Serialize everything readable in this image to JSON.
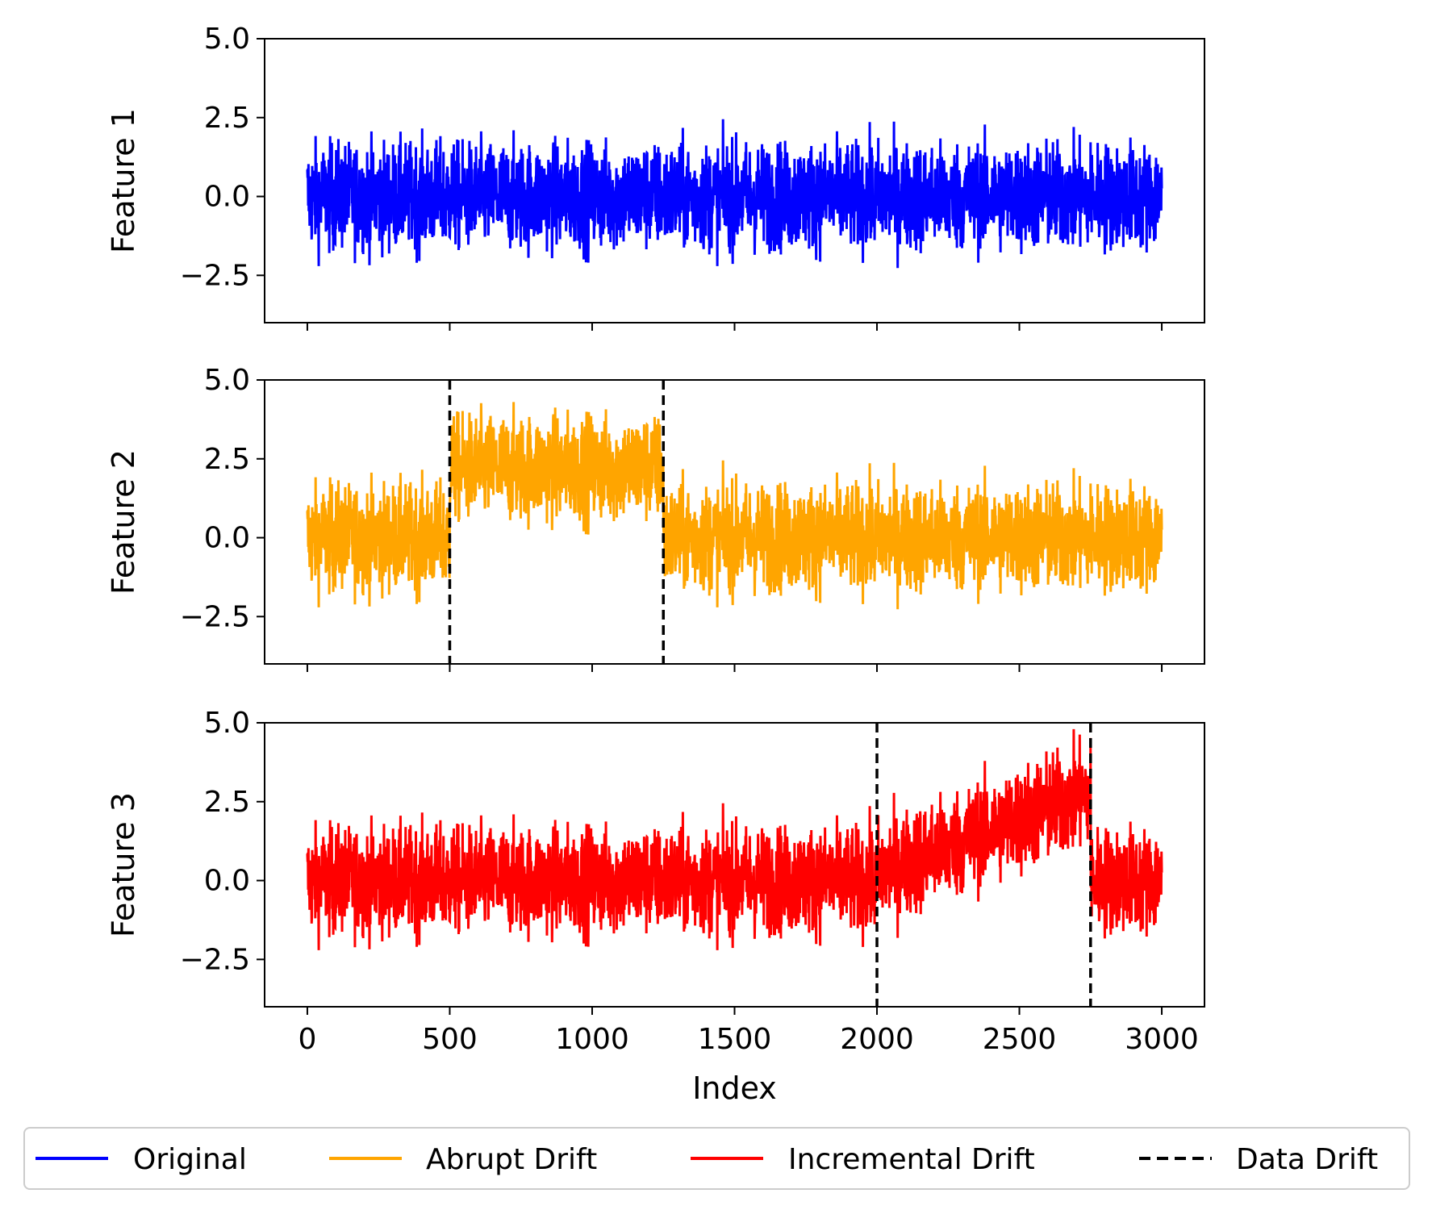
{
  "chart_data": {
    "type": "line",
    "x": {
      "min": 0,
      "max": 3000,
      "num_points": 3000
    },
    "xlabel": "Index",
    "xlim": [
      -150,
      3150
    ],
    "xticks": [
      0,
      500,
      1000,
      1500,
      2000,
      2500,
      3000
    ],
    "ylim": [
      -4.0,
      5.0
    ],
    "yticks": [
      -2.5,
      0.0,
      2.5,
      5.0
    ],
    "ytick_labels": [
      "−2.5",
      "0.0",
      "2.5",
      "5.0"
    ],
    "grid": false,
    "legend_position": "bottom",
    "panels": [
      {
        "ylabel": "Feature 1",
        "series_name": "Original",
        "color": "#0000ff",
        "noise_sd": 0.85,
        "segments": [
          {
            "start": 0,
            "end": 3000,
            "mean_start": 0.0,
            "mean_end": 0.0
          }
        ],
        "drift_lines": []
      },
      {
        "ylabel": "Feature 2",
        "series_name": "Abrupt Drift",
        "color": "#ffa500",
        "noise_sd": 0.85,
        "segments": [
          {
            "start": 0,
            "end": 500,
            "mean_start": 0.0,
            "mean_end": 0.0
          },
          {
            "start": 500,
            "end": 1250,
            "mean_start": 2.2,
            "mean_end": 2.2
          },
          {
            "start": 1250,
            "end": 3000,
            "mean_start": 0.0,
            "mean_end": 0.0
          }
        ],
        "drift_lines": [
          500,
          1250
        ]
      },
      {
        "ylabel": "Feature 3",
        "series_name": "Incremental Drift",
        "color": "#ff0000",
        "noise_sd": 0.85,
        "segments": [
          {
            "start": 0,
            "end": 2000,
            "mean_start": 0.0,
            "mean_end": 0.0
          },
          {
            "start": 2000,
            "end": 2750,
            "mean_start": 0.2,
            "mean_end": 2.8
          },
          {
            "start": 2750,
            "end": 3000,
            "mean_start": 0.0,
            "mean_end": 0.0
          }
        ],
        "drift_lines": [
          2000,
          2750
        ]
      }
    ],
    "legend": [
      {
        "label": "Original",
        "color": "#0000ff",
        "style": "solid"
      },
      {
        "label": "Abrupt Drift",
        "color": "#ffa500",
        "style": "solid"
      },
      {
        "label": "Incremental Drift",
        "color": "#ff0000",
        "style": "solid"
      },
      {
        "label": "Data Drift",
        "color": "#000000",
        "style": "dashed"
      }
    ]
  }
}
